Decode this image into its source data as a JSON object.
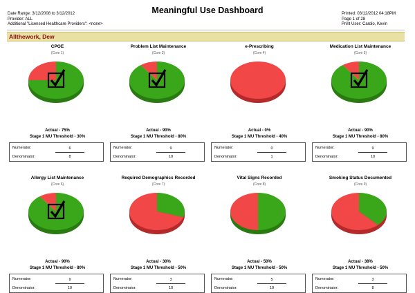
{
  "report": {
    "title": "Meaningful Use Dashboard",
    "date_range": "Date Range: 3/12/2008 to 3/12/2012",
    "provider": "Provider: ALL",
    "additional": "Additional \"Licensed Healthcare Providers\": <none>",
    "printed": "Printed:  03/12/2012 04:18PM",
    "page": "Page 1 of 28",
    "print_user": "Print User: Cardio, Kevin",
    "provider_name": "Allthework, Dew"
  },
  "colors": {
    "green": "#3aa619",
    "red": "#f24747",
    "red_dark": "#b42a2a",
    "green_dark": "#2a7a12",
    "banner": "#e8e1a3"
  },
  "measures": [
    {
      "name": "CPOE",
      "core": "(Core 1)",
      "actual": "Actual - 75%",
      "threshold": "Stage 1 MU Threshold - 30%",
      "numerator_label": "Numerator:",
      "numerator": "6",
      "denominator_label": "Denominator:",
      "denominator": "8",
      "met": true,
      "percent": 75,
      "check_icon": "checkbox-checked-icon"
    },
    {
      "name": "Problem List Maintenance",
      "core": "(Core 3)",
      "actual": "Actual - 90%",
      "threshold": "Stage 1 MU Threshold - 80%",
      "numerator_label": "Numerator:",
      "numerator": "9",
      "denominator_label": "Denominator:",
      "denominator": "10",
      "met": true,
      "percent": 90,
      "check_icon": "checkbox-checked-icon"
    },
    {
      "name": "e-Prescribing",
      "core": "(Core 4)",
      "actual": "Actual - 0%",
      "threshold": "Stage 1 MU Threshold - 40%",
      "numerator_label": "Numerator:",
      "numerator": "0",
      "denominator_label": "Denominator:",
      "denominator": "1",
      "met": false,
      "percent": 0,
      "check_icon": ""
    },
    {
      "name": "Medication List Maintenance",
      "core": "(Core 5)",
      "actual": "Actual - 90%",
      "threshold": "Stage 1 MU Threshold - 80%",
      "numerator_label": "Numerator:",
      "numerator": "9",
      "denominator_label": "Denominator:",
      "denominator": "10",
      "met": true,
      "percent": 90,
      "check_icon": "checkbox-checked-icon"
    },
    {
      "name": "Allergy List Maintenance",
      "core": "(Core 6)",
      "actual": "Actual - 90%",
      "threshold": "Stage 1 MU Threshold - 80%",
      "numerator_label": "Numerator:",
      "numerator": "9",
      "denominator_label": "Denominator:",
      "denominator": "10",
      "met": true,
      "percent": 90,
      "check_icon": "checkbox-checked-icon"
    },
    {
      "name": "Required Demographics Recorded",
      "core": "(Core 7)",
      "actual": "Actual - 30%",
      "threshold": "Stage 1 MU Threshold - 50%",
      "numerator_label": "Numerator:",
      "numerator": "3",
      "denominator_label": "Denominator:",
      "denominator": "10",
      "met": false,
      "percent": 30,
      "check_icon": ""
    },
    {
      "name": "Vital Signs Recorded",
      "core": "(Core 8)",
      "actual": "Actual - 50%",
      "threshold": "Stage 1 MU Threshold - 50%",
      "numerator_label": "Numerator:",
      "numerator": "5",
      "denominator_label": "Denominator:",
      "denominator": "10",
      "met": false,
      "percent": 50,
      "check_icon": ""
    },
    {
      "name": "Smoking Status Documented",
      "core": "(Core 9)",
      "actual": "Actual - 38%",
      "threshold": "Stage 1 MU Threshold - 50%",
      "numerator_label": "Numerator:",
      "numerator": "3",
      "denominator_label": "Denominator:",
      "denominator": "8",
      "met": false,
      "percent": 38,
      "check_icon": ""
    }
  ]
}
